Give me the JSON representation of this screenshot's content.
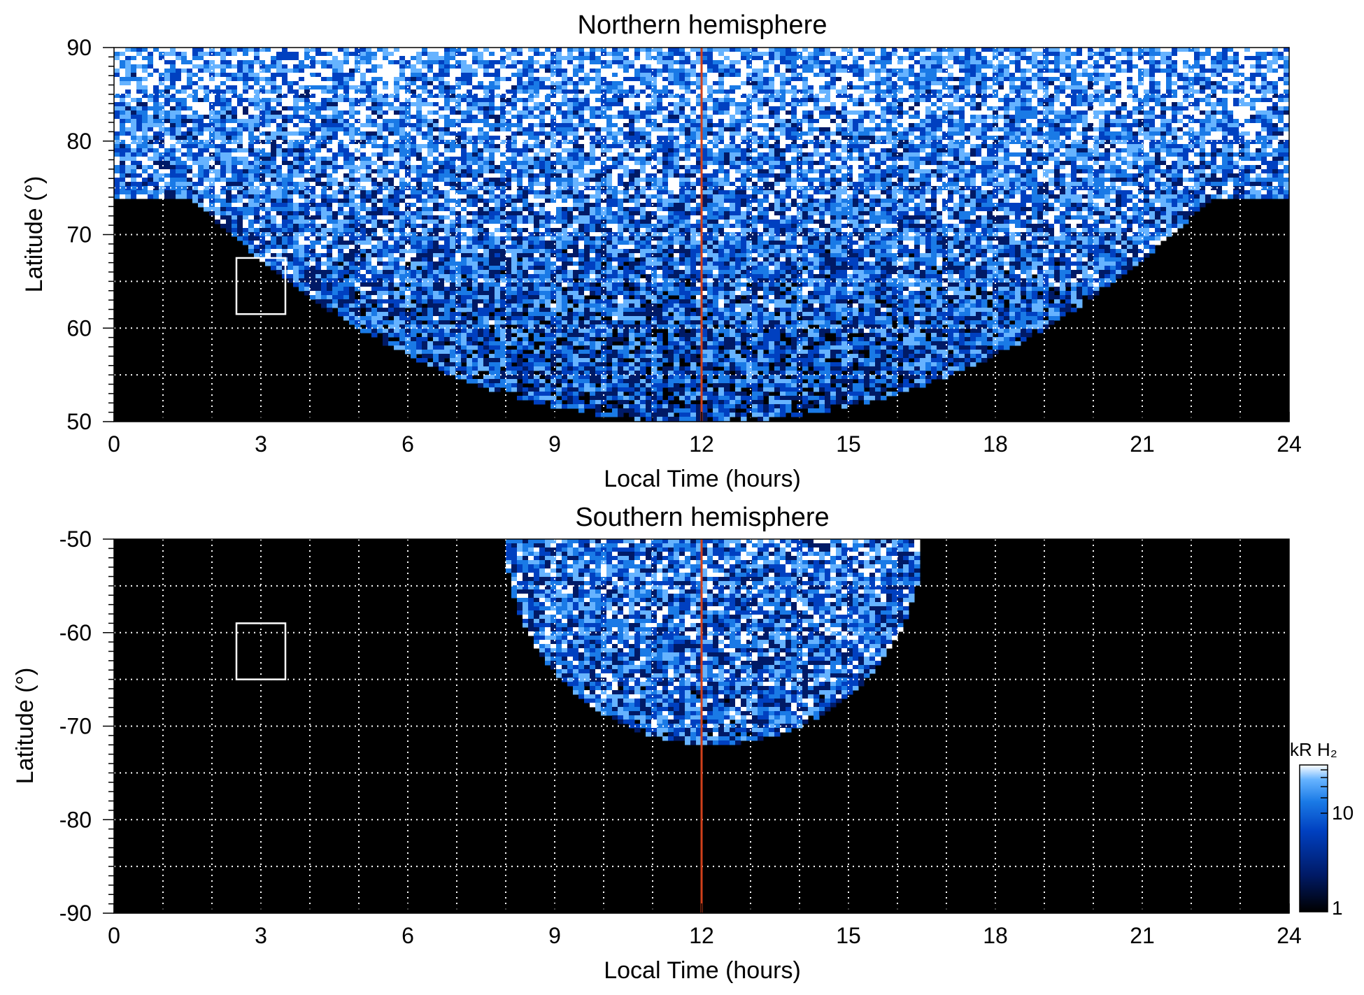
{
  "chart_data": [
    {
      "type": "heatmap",
      "title": "Northern hemisphere",
      "xlabel": "Local Time (hours)",
      "ylabel": "Latitude (°)",
      "xlim": [
        0,
        24
      ],
      "ylim": [
        50,
        90
      ],
      "x_ticks": [
        "0",
        "3",
        "6",
        "9",
        "12",
        "15",
        "18",
        "21",
        "24"
      ],
      "y_ticks": [
        "50",
        "60",
        "70",
        "80",
        "90"
      ],
      "grid": true,
      "reference_line": {
        "x": 12,
        "color": "#d0401b"
      },
      "box": {
        "x": [
          2.5,
          3.5
        ],
        "y": [
          61.5,
          67.5
        ]
      },
      "coverage": {
        "edge_low_lat": 74,
        "center_low_lat": 50,
        "center_lt": 12
      }
    },
    {
      "type": "heatmap",
      "title": "Southern hemisphere",
      "xlabel": "Local Time (hours)",
      "ylabel": "Latitude (°)",
      "xlim": [
        0,
        24
      ],
      "ylim": [
        -90,
        -50
      ],
      "x_ticks": [
        "0",
        "3",
        "6",
        "9",
        "12",
        "15",
        "18",
        "21",
        "24"
      ],
      "y_ticks": [
        "-50",
        "-60",
        "-70",
        "-80",
        "-90"
      ],
      "grid": true,
      "reference_line": {
        "x": 12,
        "color": "#d0401b"
      },
      "box": {
        "x": [
          2.5,
          3.5
        ],
        "y": [
          -65,
          -59
        ]
      },
      "coverage": {
        "lt_range": [
          8,
          16.5
        ],
        "deepest_lat": -72
      }
    }
  ],
  "colorbar": {
    "label": "kR H₂",
    "ticks": [
      "1",
      "10"
    ],
    "scale": "log",
    "colors": [
      "#000000",
      "#001a66",
      "#0040c0",
      "#1a7ae6",
      "#66b3ff",
      "#ffffff"
    ]
  }
}
